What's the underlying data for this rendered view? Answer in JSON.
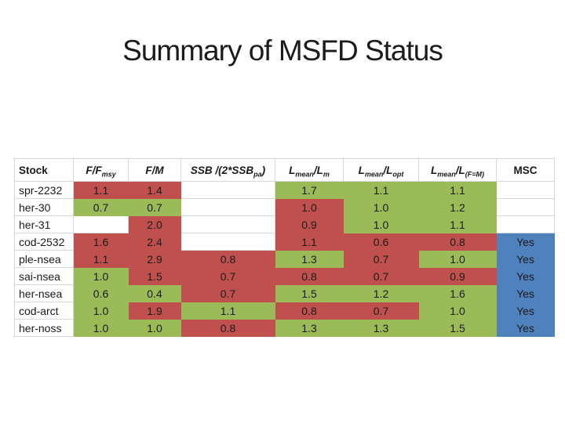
{
  "slide": {
    "title": "Summary of MSFD Status"
  },
  "colors": {
    "bad": "#C0504D",
    "good": "#9BBB59",
    "msc_yes": "#4F81BD",
    "gridline": "#D8D8D8",
    "text": "#1A1A1A",
    "title_text": "#1B1B1B",
    "background": "#FFFFFF"
  },
  "chart_data": {
    "type": "table",
    "title": "Summary of MSFD Status",
    "color_meaning": {
      "bad": "red fill",
      "good": "green fill",
      "msc_yes": "blue fill",
      "": "blank white cell"
    },
    "columns": [
      {
        "key": "stock",
        "label": "Stock",
        "label_parts": [
          [
            "Stock",
            false
          ]
        ]
      },
      {
        "key": "f_fmsy",
        "label": "F/F msy",
        "label_parts": [
          [
            "F/F",
            false
          ],
          [
            "msy",
            true
          ]
        ]
      },
      {
        "key": "f_m",
        "label": "F/M",
        "label_parts": [
          [
            "F/M",
            false
          ]
        ]
      },
      {
        "key": "ssb",
        "label": "SSB /(2*SSB pa )",
        "label_parts": [
          [
            "SSB /(2*SSB",
            false
          ],
          [
            "pa",
            true
          ],
          [
            ")",
            false
          ]
        ]
      },
      {
        "key": "lmean_lm",
        "label": "L mean /L m",
        "label_parts": [
          [
            "L",
            false
          ],
          [
            "mean",
            true
          ],
          [
            "/L",
            false
          ],
          [
            "m",
            true
          ]
        ]
      },
      {
        "key": "lmean_lopt",
        "label": "L mean /L opt",
        "label_parts": [
          [
            "L",
            false
          ],
          [
            "mean",
            true
          ],
          [
            "/L",
            false
          ],
          [
            "opt",
            true
          ]
        ]
      },
      {
        "key": "lmean_lfm",
        "label": "L mean /L (F=M)",
        "label_parts": [
          [
            "L",
            false
          ],
          [
            "mean",
            true
          ],
          [
            "/L",
            false
          ],
          [
            "(F=M)",
            true
          ]
        ]
      },
      {
        "key": "msc",
        "label": "MSC",
        "label_parts": [
          [
            "MSC",
            false
          ]
        ]
      }
    ],
    "rows": [
      {
        "stock": "spr-2232",
        "cells": [
          [
            "1.1",
            "bad"
          ],
          [
            "1.4",
            "bad"
          ],
          [
            "",
            ""
          ],
          [
            "1.7",
            "good"
          ],
          [
            "1.1",
            "good"
          ],
          [
            "1.1",
            "good"
          ],
          [
            "",
            ""
          ]
        ]
      },
      {
        "stock": "her-30",
        "cells": [
          [
            "0.7",
            "good"
          ],
          [
            "0.7",
            "good"
          ],
          [
            "",
            ""
          ],
          [
            "1.0",
            "bad"
          ],
          [
            "1.0",
            "good"
          ],
          [
            "1.2",
            "good"
          ],
          [
            "",
            ""
          ]
        ]
      },
      {
        "stock": "her-31",
        "cells": [
          [
            "",
            ""
          ],
          [
            "2.0",
            "bad"
          ],
          [
            "",
            ""
          ],
          [
            "0.9",
            "bad"
          ],
          [
            "1.0",
            "good"
          ],
          [
            "1.1",
            "good"
          ],
          [
            "",
            ""
          ]
        ]
      },
      {
        "stock": "cod-2532",
        "cells": [
          [
            "1.6",
            "bad"
          ],
          [
            "2.4",
            "bad"
          ],
          [
            "",
            ""
          ],
          [
            "1.1",
            "bad"
          ],
          [
            "0.6",
            "bad"
          ],
          [
            "0.8",
            "bad"
          ],
          [
            "Yes",
            "msc_yes"
          ]
        ]
      },
      {
        "stock": "ple-nsea",
        "cells": [
          [
            "1.1",
            "bad"
          ],
          [
            "2.9",
            "bad"
          ],
          [
            "0.8",
            "bad"
          ],
          [
            "1.3",
            "good"
          ],
          [
            "0.7",
            "bad"
          ],
          [
            "1.0",
            "good"
          ],
          [
            "Yes",
            "msc_yes"
          ]
        ]
      },
      {
        "stock": "sai-nsea",
        "cells": [
          [
            "1.0",
            "good"
          ],
          [
            "1.5",
            "bad"
          ],
          [
            "0.7",
            "bad"
          ],
          [
            "0.8",
            "bad"
          ],
          [
            "0.7",
            "bad"
          ],
          [
            "0.9",
            "bad"
          ],
          [
            "Yes",
            "msc_yes"
          ]
        ]
      },
      {
        "stock": "her-nsea",
        "cells": [
          [
            "0.6",
            "good"
          ],
          [
            "0.4",
            "good"
          ],
          [
            "0.7",
            "bad"
          ],
          [
            "1.5",
            "good"
          ],
          [
            "1.2",
            "good"
          ],
          [
            "1.6",
            "good"
          ],
          [
            "Yes",
            "msc_yes"
          ]
        ]
      },
      {
        "stock": "cod-arct",
        "cells": [
          [
            "1.0",
            "good"
          ],
          [
            "1.9",
            "bad"
          ],
          [
            "1.1",
            "good"
          ],
          [
            "0.8",
            "bad"
          ],
          [
            "0.7",
            "bad"
          ],
          [
            "1.0",
            "good"
          ],
          [
            "Yes",
            "msc_yes"
          ]
        ]
      },
      {
        "stock": "her-noss",
        "cells": [
          [
            "1.0",
            "good"
          ],
          [
            "1.0",
            "good"
          ],
          [
            "0.8",
            "bad"
          ],
          [
            "1.3",
            "good"
          ],
          [
            "1.3",
            "good"
          ],
          [
            "1.5",
            "good"
          ],
          [
            "Yes",
            "msc_yes"
          ]
        ]
      }
    ]
  }
}
